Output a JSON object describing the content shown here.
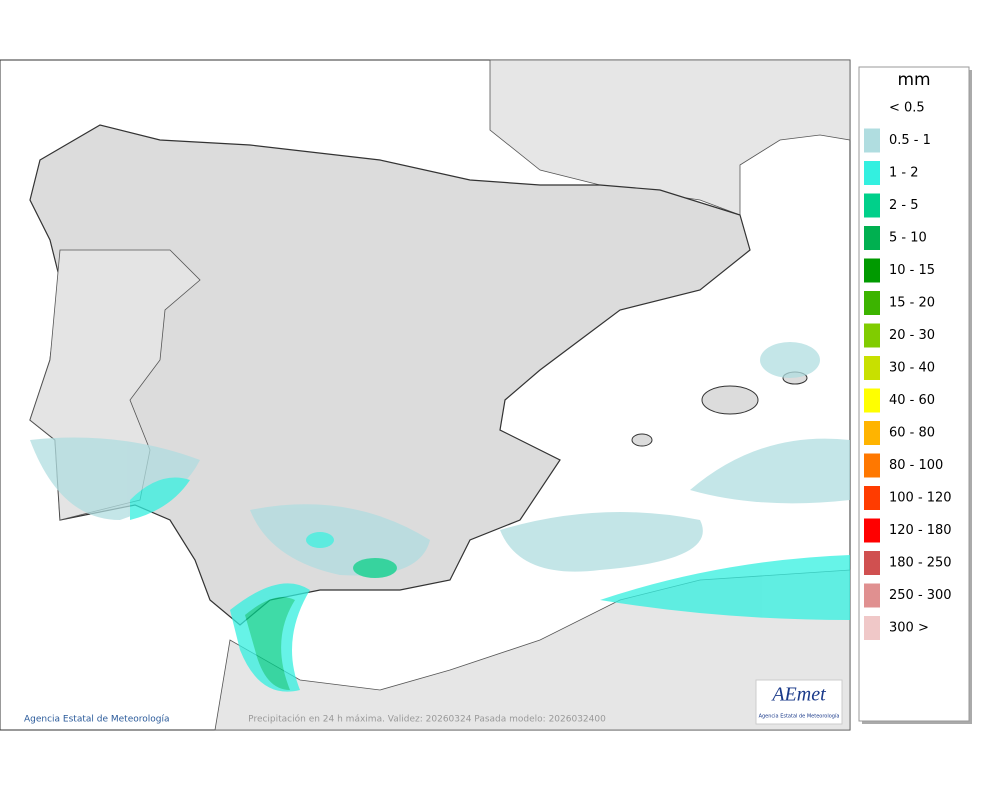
{
  "map": {
    "credit": "Agencia Estatal de Meteorología",
    "caption": "Precipitación en 24 h máxima. Validez: 20260324 Pasada modelo: 2026032400",
    "logo": {
      "name": "AEmet",
      "subtitle": "Agencia Estatal de Meteorología"
    }
  },
  "legend": {
    "title": "mm",
    "items": [
      {
        "label": "< 0.5"
      },
      {
        "label": "0.5 - 1",
        "color": "#b0dde0"
      },
      {
        "label": "1 - 2",
        "color": "#33f0e0"
      },
      {
        "label": "2 - 5",
        "color": "#00d08a"
      },
      {
        "label": "5 - 10",
        "color": "#00b050"
      },
      {
        "label": "10 - 15",
        "color": "#009a00"
      },
      {
        "label": "15 - 20",
        "color": "#3cb400"
      },
      {
        "label": "20 - 30",
        "color": "#80cc00"
      },
      {
        "label": "30 - 40",
        "color": "#c8e000"
      },
      {
        "label": "40 - 60",
        "color": "#ffff00"
      },
      {
        "label": "60 - 80",
        "color": "#ffb400"
      },
      {
        "label": "80 - 100",
        "color": "#ff7800"
      },
      {
        "label": "100 - 120",
        "color": "#ff3c00"
      },
      {
        "label": "120 - 180",
        "color": "#ff0000"
      },
      {
        "label": "180 - 250",
        "color": "#d05050"
      },
      {
        "label": "250 - 300",
        "color": "#e09090"
      },
      {
        "label": "300 >",
        "color": "#f0c8c8"
      }
    ]
  }
}
